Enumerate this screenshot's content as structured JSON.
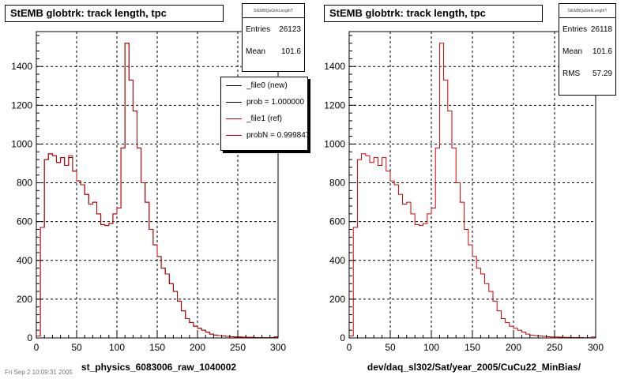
{
  "chart_data": [
    {
      "type": "bar",
      "title": "StEMB globtrk: track length, tpc",
      "xlabel": "st_physics_6083006_raw_1040002",
      "xlim": [
        0,
        300
      ],
      "ylim": [
        0,
        1580
      ],
      "xticks": [
        0,
        50,
        100,
        150,
        200,
        250,
        300
      ],
      "yticks": [
        0,
        200,
        400,
        600,
        800,
        1000,
        1200,
        1400
      ],
      "grid": true,
      "bin_width": 5,
      "stats": {
        "name": "StEMBQaGtrkLengthT",
        "rows": [
          {
            "label": "Entries",
            "value": "26123"
          },
          {
            "label": "Mean",
            "value": "101.6"
          }
        ]
      },
      "legend": {
        "position": "top-right",
        "entries": [
          {
            "label": "_file0 (new)",
            "color": "#000000"
          },
          {
            "label": "prob = 1.000000",
            "color": "#000000"
          },
          {
            "label": "_file1 (ref)",
            "color": "#cc0000"
          },
          {
            "label": "probN = 0.999847",
            "color": "#cc0000"
          }
        ]
      },
      "series": [
        {
          "name": "_file0 (new)",
          "color": "#000000",
          "values": [
            10,
            570,
            920,
            950,
            940,
            905,
            930,
            890,
            930,
            860,
            810,
            790,
            740,
            690,
            700,
            640,
            585,
            580,
            590,
            640,
            670,
            980,
            1520,
            1330,
            1170,
            980,
            800,
            700,
            560,
            480,
            420,
            360,
            330,
            280,
            240,
            190,
            140,
            100,
            80,
            60,
            50,
            40,
            30,
            20,
            15,
            12,
            10,
            8,
            6,
            5,
            5,
            4,
            3,
            3,
            2,
            2,
            2,
            1,
            1,
            5
          ]
        },
        {
          "name": "_file1 (ref)",
          "color": "#cc0000",
          "values": [
            10,
            570,
            920,
            950,
            940,
            905,
            930,
            890,
            940,
            860,
            810,
            790,
            740,
            690,
            700,
            640,
            585,
            580,
            590,
            640,
            670,
            980,
            1520,
            1330,
            1170,
            980,
            800,
            700,
            560,
            480,
            420,
            360,
            330,
            280,
            240,
            190,
            140,
            100,
            80,
            60,
            50,
            40,
            30,
            20,
            15,
            12,
            10,
            8,
            6,
            5,
            5,
            4,
            3,
            3,
            2,
            2,
            2,
            1,
            1,
            5
          ]
        }
      ]
    },
    {
      "type": "bar",
      "title": "StEMB globtrk: track length, tpc",
      "xlabel": "dev/daq_sl302/Sat/year_2005/CuCu22_MinBias/",
      "xlim": [
        0,
        300
      ],
      "ylim": [
        0,
        1580
      ],
      "xticks": [
        0,
        50,
        100,
        150,
        200,
        250,
        300
      ],
      "yticks": [
        0,
        200,
        400,
        600,
        800,
        1000,
        1200,
        1400
      ],
      "grid": true,
      "bin_width": 5,
      "stats": {
        "name": "StEMBQaGtrkLengthT",
        "rows": [
          {
            "label": "Entries",
            "value": "26118"
          },
          {
            "label": "Mean",
            "value": "101.6"
          },
          {
            "label": "RMS",
            "value": "57.29"
          }
        ]
      },
      "series": [
        {
          "name": "",
          "color": "#cc0000",
          "values": [
            10,
            570,
            920,
            950,
            940,
            905,
            930,
            890,
            930,
            860,
            810,
            790,
            740,
            690,
            700,
            640,
            585,
            580,
            590,
            640,
            670,
            980,
            1520,
            1330,
            1170,
            980,
            800,
            700,
            560,
            480,
            420,
            360,
            330,
            280,
            240,
            190,
            140,
            100,
            80,
            60,
            50,
            40,
            30,
            20,
            15,
            12,
            10,
            8,
            6,
            5,
            5,
            4,
            3,
            3,
            2,
            2,
            2,
            1,
            1,
            5
          ]
        }
      ]
    }
  ],
  "footer": "Fri Sep 2 10:09:31 2005"
}
